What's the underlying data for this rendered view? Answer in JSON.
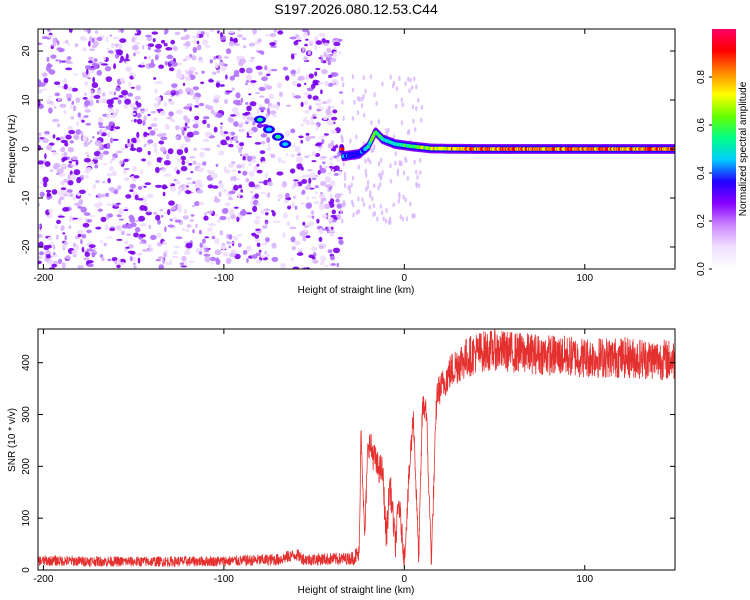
{
  "title": "S197.2026.080.12.53.C44",
  "colors": {
    "snr_line": "#e53030",
    "axis": "#000000",
    "colorbar": [
      "#ffffff",
      "#f0e0ff",
      "#cc88ff",
      "#8800ff",
      "#2200ff",
      "#00ccff",
      "#00ff88",
      "#66ff00",
      "#ffff00",
      "#ff8800",
      "#ff0000",
      "#ff0066"
    ]
  },
  "chart_data": [
    {
      "type": "heatmap",
      "name": "spectrogram",
      "xlabel": "Height of straight line (km)",
      "ylabel": "Frequency (Hz)",
      "xlim": [
        -203,
        150
      ],
      "ylim": [
        -24.5,
        24.5
      ],
      "xticks": [
        -200,
        -100,
        0,
        100
      ],
      "xtick_labels": [
        "-200",
        "-100",
        "0",
        "100"
      ],
      "yticks": [
        -20,
        -10,
        0,
        10,
        20
      ],
      "ytick_labels": [
        "-20",
        "-10",
        "0",
        "10",
        "20"
      ],
      "noise_region_x": [
        -203,
        -35
      ],
      "gap_region_x": [
        -72,
        -62
      ],
      "carrier_x_start": -35,
      "carrier": [
        {
          "x": -34,
          "f": -1.5,
          "a": 0.45
        },
        {
          "x": -25,
          "f": -1.0,
          "a": 0.4
        },
        {
          "x": -20,
          "f": 0.5,
          "a": 0.55
        },
        {
          "x": -16,
          "f": 3.5,
          "a": 0.75
        },
        {
          "x": -12,
          "f": 2.0,
          "a": 0.6
        },
        {
          "x": -5,
          "f": 1.0,
          "a": 0.55
        },
        {
          "x": 5,
          "f": 0.5,
          "a": 0.65
        },
        {
          "x": 15,
          "f": 0.1,
          "a": 0.8
        },
        {
          "x": 40,
          "f": 0.0,
          "a": 0.95
        },
        {
          "x": 150,
          "f": 0.0,
          "a": 0.95
        }
      ],
      "bright_blobs": [
        {
          "x": -80,
          "f": 6.0,
          "a": 0.55
        },
        {
          "x": -75,
          "f": 4.0,
          "a": 0.45
        },
        {
          "x": -70,
          "f": 2.5,
          "a": 0.5
        },
        {
          "x": -66,
          "f": 1.0,
          "a": 0.45
        }
      ],
      "colorbar": {
        "label": "Normalized spectral amplitude",
        "range": [
          0,
          1
        ],
        "ticks": [
          0.0,
          0.2,
          0.4,
          0.6,
          0.8
        ],
        "tick_labels": [
          "0.0",
          "0.2",
          "0.4",
          "0.6",
          "0.8"
        ]
      }
    },
    {
      "type": "line",
      "name": "snr",
      "xlabel": "Height of straight line (km)",
      "ylabel": "SNR (10 * v/v)",
      "xlim": [
        -203,
        150
      ],
      "ylim": [
        0,
        465
      ],
      "xticks": [
        -200,
        -100,
        0,
        100
      ],
      "xtick_labels": [
        "-200",
        "-100",
        "0",
        "100"
      ],
      "yticks": [
        0,
        100,
        200,
        300,
        400
      ],
      "ytick_labels": [
        "0",
        "100",
        "200",
        "300",
        "400"
      ],
      "series": [
        {
          "name": "SNR",
          "x": [
            -203,
            -150,
            -100,
            -70,
            -60,
            -55,
            -30,
            -25,
            -24,
            -22,
            -20,
            -18,
            -15,
            -12,
            -10,
            -8,
            -5,
            -3,
            0,
            3,
            5,
            8,
            10,
            12,
            15,
            18,
            20,
            25,
            30,
            35,
            40,
            50,
            60,
            80,
            100,
            120,
            150
          ],
          "values": [
            18,
            16,
            17,
            20,
            30,
            20,
            22,
            30,
            280,
            60,
            250,
            230,
            200,
            190,
            60,
            170,
            50,
            130,
            20,
            200,
            300,
            20,
            310,
            320,
            20,
            340,
            350,
            380,
            400,
            410,
            420,
            425,
            420,
            415,
            410,
            410,
            405
          ],
          "noise_amplitude": [
            10,
            10,
            10,
            12,
            12,
            12,
            12,
            20,
            20,
            20,
            30,
            30,
            30,
            30,
            30,
            30,
            30,
            30,
            20,
            30,
            30,
            20,
            30,
            30,
            20,
            30,
            30,
            35,
            40,
            40,
            40,
            40,
            40,
            40,
            40,
            40,
            40
          ]
        }
      ]
    }
  ]
}
